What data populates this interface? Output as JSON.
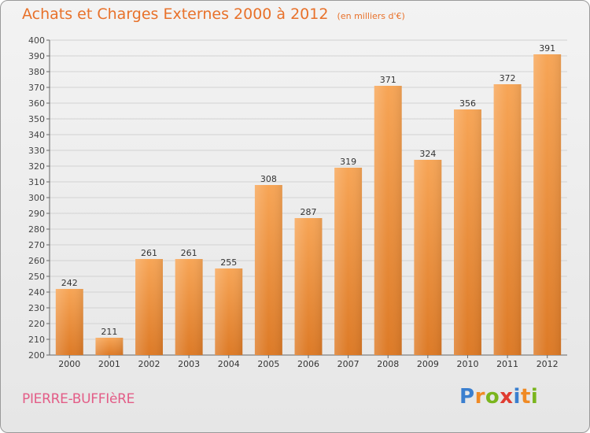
{
  "title": "Achats et Charges Externes 2000 à 2012",
  "subtitle": "(en milliers d'€)",
  "commune": "PIERRE-BUFFIèRE",
  "logo": {
    "letters": [
      "P",
      "r",
      "o",
      "x",
      "i",
      "t",
      "i"
    ],
    "colors": [
      "#3a7fcf",
      "#f08a24",
      "#7ab51d",
      "#e03c31",
      "#3a7fcf",
      "#f08a24",
      "#7ab51d"
    ]
  },
  "colors": {
    "accent": "#e8712a",
    "commune": "#e35d87",
    "bar_top": "#f7a556",
    "bar_bottom": "#dd7a26"
  },
  "chart_data": {
    "type": "bar",
    "categories": [
      "2000",
      "2001",
      "2002",
      "2003",
      "2004",
      "2005",
      "2006",
      "2007",
      "2008",
      "2009",
      "2010",
      "2011",
      "2012"
    ],
    "values": [
      242,
      211,
      261,
      261,
      255,
      308,
      287,
      319,
      371,
      324,
      356,
      372,
      391
    ],
    "ylim": [
      200,
      400
    ],
    "ytick_step": 10,
    "grid": true
  }
}
